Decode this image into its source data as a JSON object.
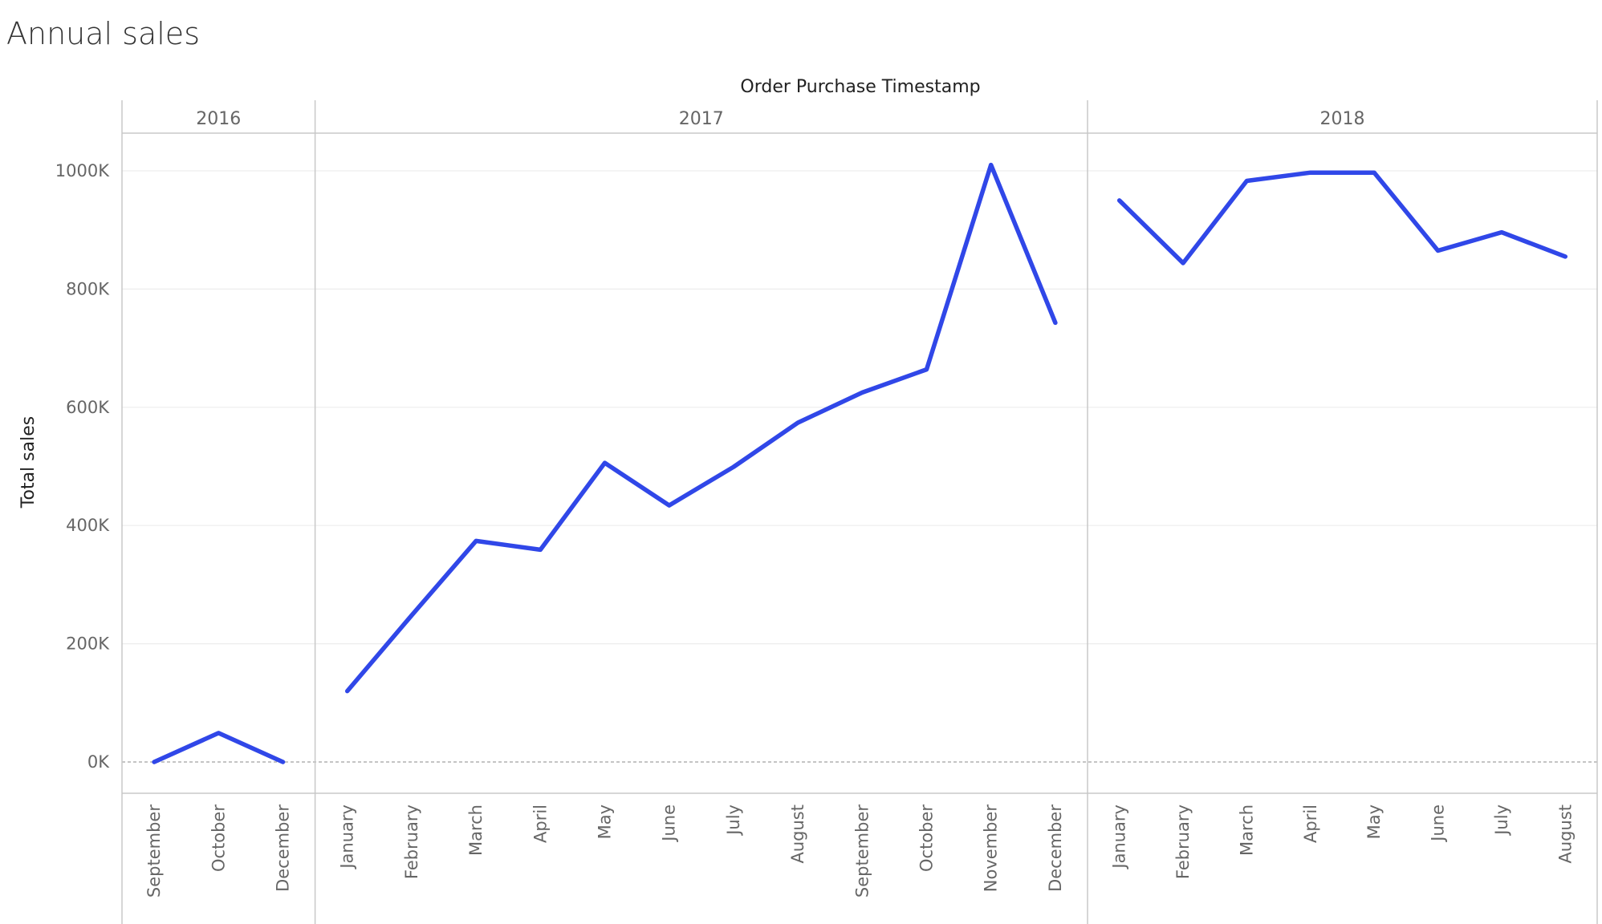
{
  "chart_data": {
    "type": "line",
    "title": "Annual sales",
    "xlabel": "Order Purchase Timestamp",
    "ylabel": "Total sales",
    "ylim": [
      0,
      1100000
    ],
    "yticks": [
      0,
      200000,
      400000,
      600000,
      800000,
      1000000
    ],
    "ytick_labels": [
      "0K",
      "200K",
      "400K",
      "600K",
      "800K",
      "1000K"
    ],
    "grid": true,
    "color": "#3047e8",
    "panels": [
      {
        "year": "2016",
        "months": [
          "September",
          "October",
          "December"
        ],
        "values": [
          0,
          49000,
          0
        ]
      },
      {
        "year": "2017",
        "months": [
          "January",
          "February",
          "March",
          "April",
          "May",
          "June",
          "July",
          "August",
          "September",
          "October",
          "November",
          "December"
        ],
        "values": [
          120000,
          248000,
          374000,
          359000,
          506000,
          434000,
          499000,
          574000,
          625000,
          664000,
          1010000,
          743000
        ]
      },
      {
        "year": "2018",
        "months": [
          "January",
          "February",
          "March",
          "April",
          "May",
          "June",
          "July",
          "August"
        ],
        "values": [
          950000,
          844000,
          983000,
          997000,
          997000,
          865000,
          896000,
          855000
        ]
      }
    ]
  }
}
